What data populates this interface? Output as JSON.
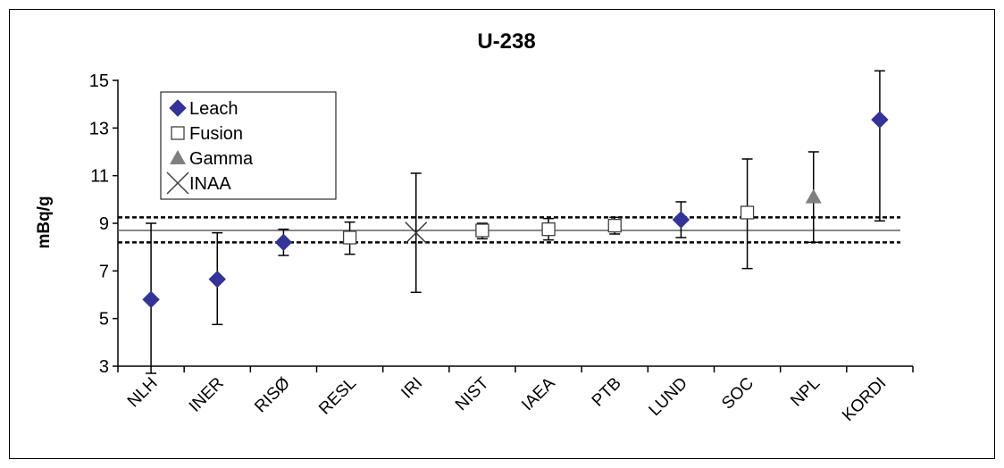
{
  "chart_data": {
    "type": "scatter",
    "title": "U-238",
    "xlabel": "",
    "ylabel": "mBq/g",
    "ylim": [
      3,
      15
    ],
    "yticks": [
      3,
      5,
      7,
      9,
      11,
      13,
      15
    ],
    "categories": [
      "NLH",
      "INER",
      "RISØ",
      "RESL",
      "IRI",
      "NIST",
      "IAEA",
      "PTB",
      "LUND",
      "SOC",
      "NPL",
      "KORDI"
    ],
    "legend_position": "top-left",
    "reference": {
      "value": 8.7,
      "lower": 8.2,
      "upper": 9.25
    },
    "colors": {
      "Leach": "#33339a",
      "Fusion": "#ffffff",
      "Gamma": "#7f7f7f",
      "INAA": "#000000"
    },
    "series": [
      {
        "name": "Leach",
        "marker": "diamond",
        "points": [
          {
            "category": "NLH",
            "value": 5.8,
            "err_low": 2.7,
            "err_high": 9.0
          },
          {
            "category": "INER",
            "value": 6.65,
            "err_low": 4.75,
            "err_high": 8.6
          },
          {
            "category": "RISØ",
            "value": 8.2,
            "err_low": 7.65,
            "err_high": 8.75
          },
          {
            "category": "LUND",
            "value": 9.15,
            "err_low": 8.4,
            "err_high": 9.9
          },
          {
            "category": "KORDI",
            "value": 13.35,
            "err_low": 9.1,
            "err_high": 15.4
          }
        ]
      },
      {
        "name": "Fusion",
        "marker": "square",
        "points": [
          {
            "category": "RESL",
            "value": 8.4,
            "err_low": 7.7,
            "err_high": 9.05
          },
          {
            "category": "NIST",
            "value": 8.7,
            "err_low": 8.35,
            "err_high": 9.0
          },
          {
            "category": "IAEA",
            "value": 8.75,
            "err_low": 8.3,
            "err_high": 9.2
          },
          {
            "category": "PTB",
            "value": 8.9,
            "err_low": 8.55,
            "err_high": 9.25
          },
          {
            "category": "SOC",
            "value": 9.45,
            "err_low": 7.1,
            "err_high": 11.7
          }
        ]
      },
      {
        "name": "Gamma",
        "marker": "triangle",
        "points": [
          {
            "category": "NPL",
            "value": 10.1,
            "err_low": 8.2,
            "err_high": 12.0
          }
        ]
      },
      {
        "name": "INAA",
        "marker": "x",
        "points": [
          {
            "category": "IRI",
            "value": 8.6,
            "err_low": 6.1,
            "err_high": 11.1
          }
        ]
      }
    ]
  }
}
